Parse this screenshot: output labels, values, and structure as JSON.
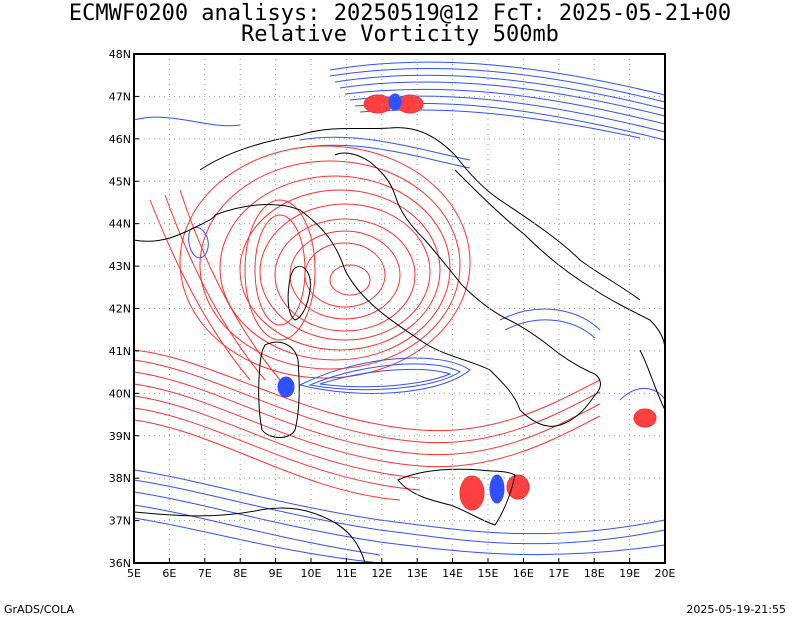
{
  "title": {
    "line1": "ECMWF0200 analisys: 20250519@12 FcT: 2025-05-21+00",
    "line2": "Relative Vorticity 500mb"
  },
  "footer": {
    "left": "GrADS/COLA",
    "right": "2025-05-19-21:55"
  },
  "map": {
    "lon_range": [
      5,
      20
    ],
    "lat_range": [
      36,
      48
    ],
    "lon_labels": [
      "5E",
      "6E",
      "7E",
      "8E",
      "9E",
      "10E",
      "11E",
      "12E",
      "13E",
      "14E",
      "15E",
      "16E",
      "17E",
      "18E",
      "19E",
      "20E"
    ],
    "lat_labels": [
      "36N",
      "37N",
      "38N",
      "39N",
      "40N",
      "41N",
      "42N",
      "43N",
      "44N",
      "45N",
      "46N",
      "47N",
      "48N"
    ],
    "grid": "dotted",
    "colors": {
      "positive": "#ff3030",
      "negative": "#3050ff",
      "coast": "#000000"
    }
  }
}
